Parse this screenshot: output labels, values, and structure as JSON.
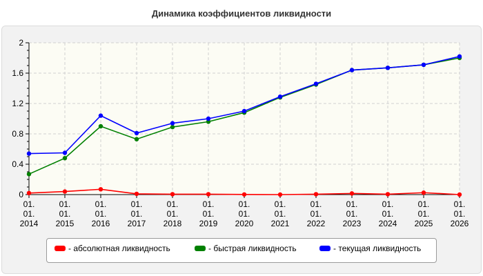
{
  "chart_data": {
    "type": "line",
    "title": "Динамика коэффициентов ликвидности",
    "categories": [
      [
        "01.",
        "01.",
        "2014"
      ],
      [
        "01.",
        "01.",
        "2015"
      ],
      [
        "01.",
        "01.",
        "2016"
      ],
      [
        "01.",
        "01.",
        "2017"
      ],
      [
        "01.",
        "01.",
        "2018"
      ],
      [
        "01.",
        "01.",
        "2019"
      ],
      [
        "01.",
        "01.",
        "2020"
      ],
      [
        "01.",
        "01.",
        "2021"
      ],
      [
        "01.",
        "01.",
        "2022"
      ],
      [
        "01.",
        "01.",
        "2023"
      ],
      [
        "01.",
        "01.",
        "2024"
      ],
      [
        "01.",
        "01.",
        "2025"
      ],
      [
        "01.",
        "01.",
        "2026"
      ]
    ],
    "ylim": [
      0,
      2
    ],
    "yticks": [
      "0",
      "0.4",
      "0.8",
      "1.2",
      "1.6",
      "2"
    ],
    "ytick_values": [
      0,
      0.4,
      0.8,
      1.2,
      1.6,
      2
    ],
    "grid": true,
    "legend_position": "bottom",
    "series": [
      {
        "name": "- абсолютная ликвидность",
        "color": "#ff0000",
        "values": [
          0.02,
          0.04,
          0.07,
          0.01,
          0.005,
          0.005,
          0.002,
          0.0,
          0.005,
          0.015,
          0.005,
          0.025,
          0.0
        ]
      },
      {
        "name": "- быстрая ликвидность",
        "color": "#008000",
        "values": [
          0.27,
          0.48,
          0.9,
          0.73,
          0.89,
          0.96,
          1.08,
          1.28,
          1.45,
          1.64,
          1.67,
          1.71,
          1.8
        ]
      },
      {
        "name": "- текущая ликвидность",
        "color": "#0000ff",
        "values": [
          0.54,
          0.55,
          1.04,
          0.81,
          0.94,
          1.0,
          1.1,
          1.29,
          1.46,
          1.64,
          1.67,
          1.71,
          1.82
        ]
      }
    ]
  }
}
